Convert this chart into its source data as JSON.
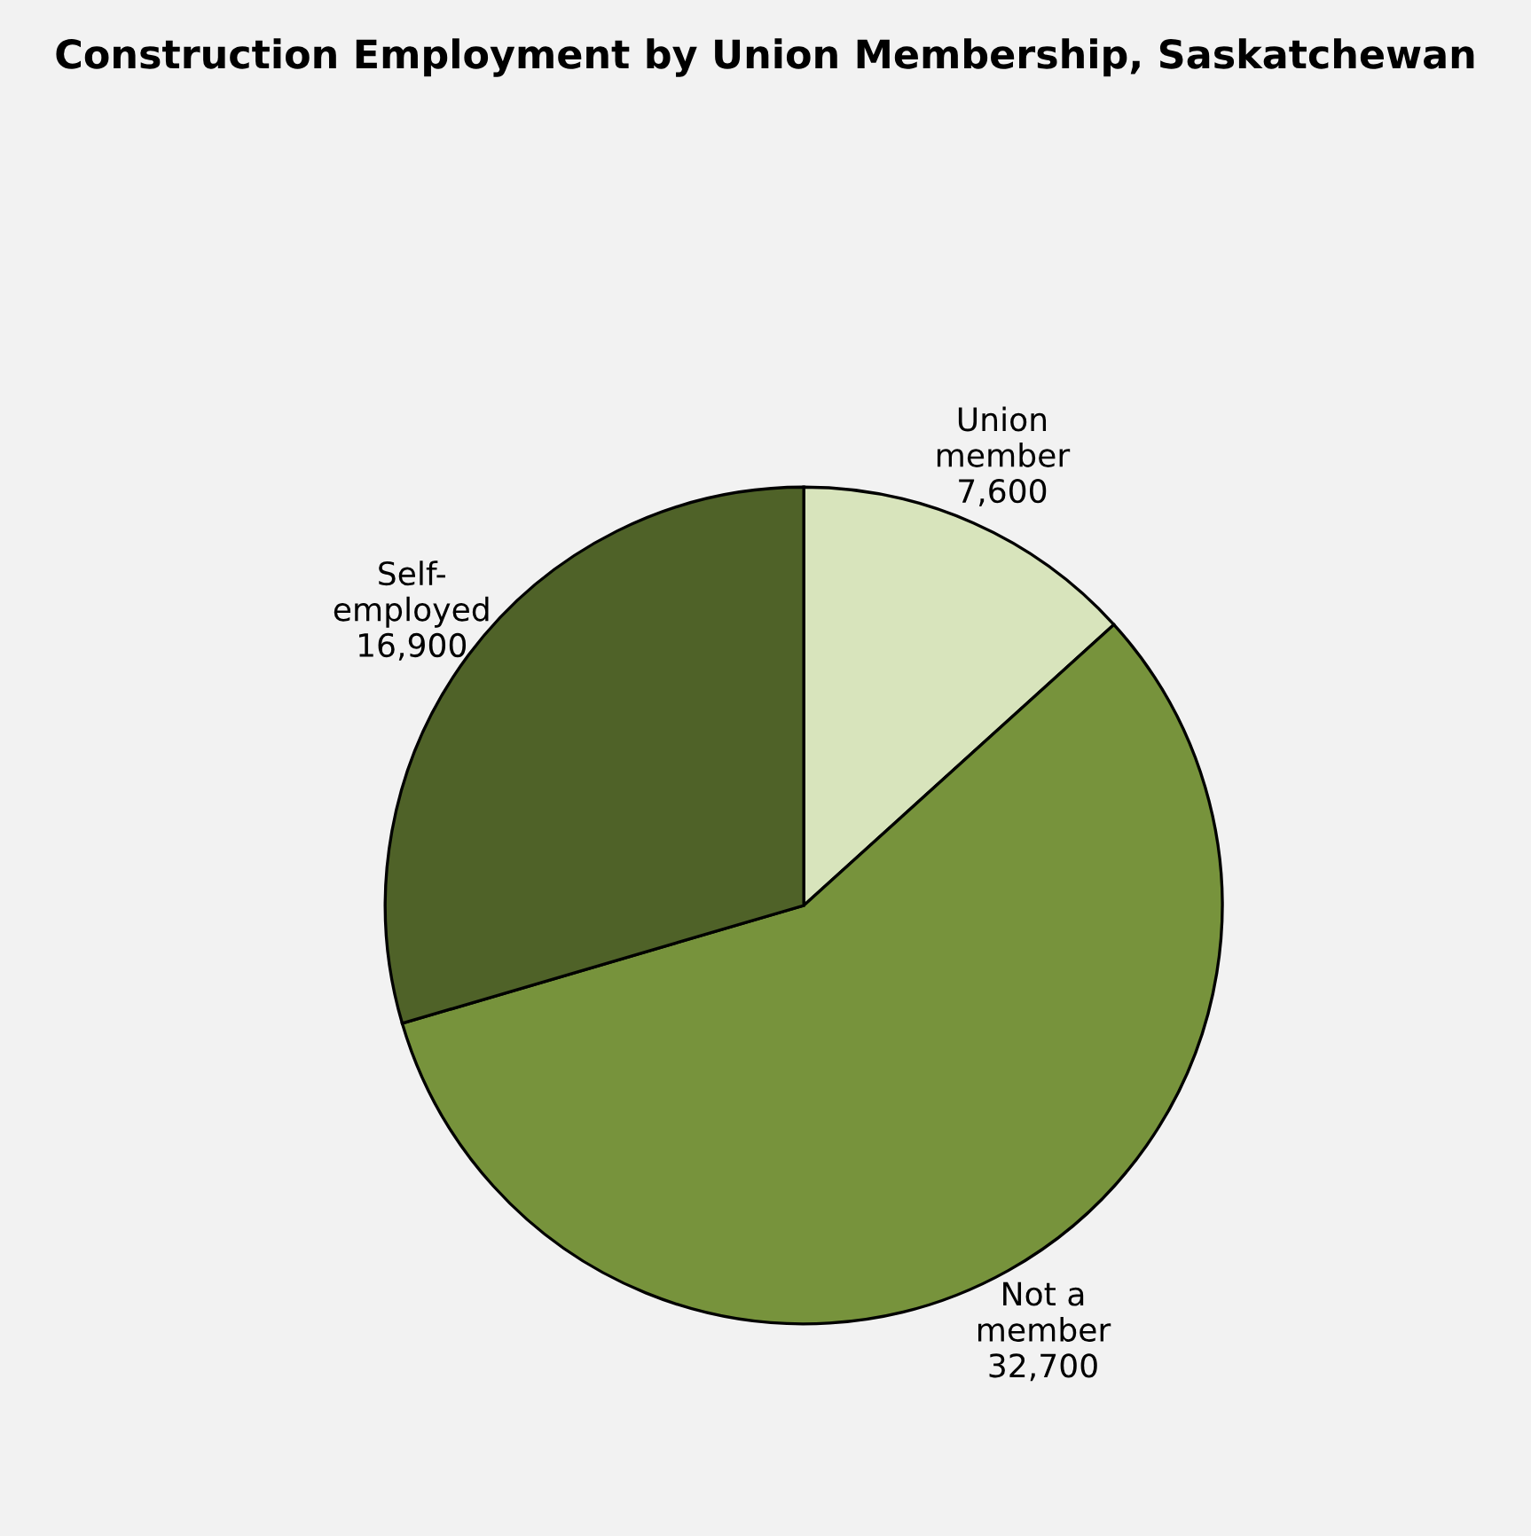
{
  "chart_data": {
    "type": "pie",
    "title": "Construction Employment by Union Membership, Saskatchewan",
    "categories": [
      "Union member",
      "Not a member",
      "Self-employed"
    ],
    "values": [
      7600,
      32700,
      16900
    ],
    "colors": [
      "#d8e4bc",
      "#77933c",
      "#4f6228"
    ],
    "value_labels": [
      "7,600",
      "32,700",
      "16,900"
    ],
    "legend": false
  }
}
